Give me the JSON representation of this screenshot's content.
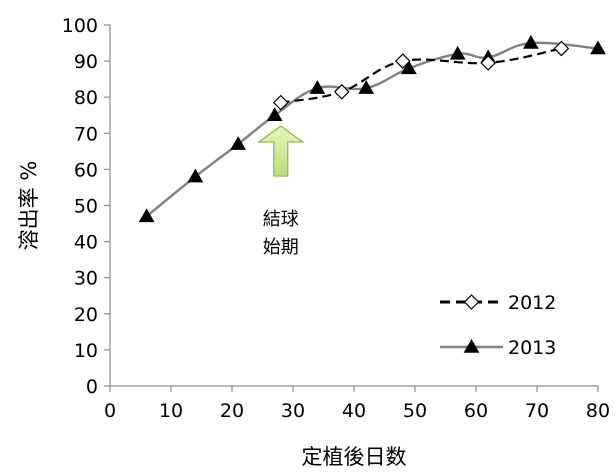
{
  "chart_data": {
    "type": "line",
    "xlabel": "定植後日数",
    "ylabel": "溶出率 %",
    "xlim": [
      0,
      80
    ],
    "ylim": [
      0,
      100
    ],
    "xticks": [
      0,
      10,
      20,
      30,
      40,
      50,
      60,
      70,
      80
    ],
    "yticks": [
      0,
      10,
      20,
      30,
      40,
      50,
      60,
      70,
      80,
      90,
      100
    ],
    "grid": false,
    "legend_position": "bottom-right",
    "series": [
      {
        "name": "2012",
        "color": "#000000",
        "line_style": "dashed",
        "marker": "open-diamond",
        "x": [
          28,
          38,
          48,
          62,
          74
        ],
        "y": [
          78.5,
          81.5,
          90,
          89.5,
          93.5
        ]
      },
      {
        "name": "2013",
        "color": "#808080",
        "line_style": "solid",
        "marker": "filled-triangle",
        "x": [
          6,
          14,
          21,
          27,
          34,
          42,
          49,
          57,
          62,
          69,
          80
        ],
        "y": [
          47,
          58,
          67,
          75,
          82.5,
          82.5,
          88,
          92,
          91,
          95,
          93.5
        ]
      }
    ],
    "annotations": [
      {
        "text_lines": [
          "結球",
          "始期"
        ],
        "x": 28,
        "y": 72,
        "arrow_color": "#ccee88",
        "arrow_stroke": "#88bb44"
      }
    ]
  }
}
